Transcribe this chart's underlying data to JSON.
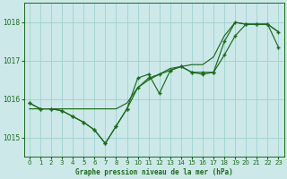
{
  "bg_color": "#cce8e8",
  "grid_color": "#99cccc",
  "line_color": "#1a6b1a",
  "xlim": [
    -0.5,
    23.5
  ],
  "ylim": [
    1014.5,
    1018.5
  ],
  "yticks": [
    1015,
    1016,
    1017,
    1018
  ],
  "xtick_labels": [
    "0",
    "1",
    "2",
    "3",
    "4",
    "5",
    "6",
    "7",
    "8",
    "9",
    "10",
    "11",
    "12",
    "13",
    "14",
    "15",
    "16",
    "17",
    "18",
    "19",
    "20",
    "21",
    "22",
    "23"
  ],
  "xticks": [
    0,
    1,
    2,
    3,
    4,
    5,
    6,
    7,
    8,
    9,
    10,
    11,
    12,
    13,
    14,
    15,
    16,
    17,
    18,
    19,
    20,
    21,
    22,
    23
  ],
  "xlabel": "Graphe pression niveau de la mer (hPa)",
  "hours": [
    0,
    1,
    2,
    3,
    4,
    5,
    6,
    7,
    8,
    9,
    10,
    11,
    12,
    13,
    14,
    15,
    16,
    17,
    18,
    19,
    20,
    21,
    22,
    23
  ],
  "curve_main": [
    1015.9,
    1015.75,
    1015.75,
    1015.7,
    1015.55,
    1015.4,
    1015.2,
    1014.85,
    1015.3,
    1015.75,
    1016.55,
    1016.65,
    1016.15,
    1016.75,
    1016.85,
    1016.7,
    1016.7,
    1016.7,
    1017.15,
    1017.65,
    1017.95,
    1017.95,
    1017.95,
    1017.75
  ],
  "curve_upper": [
    1015.75,
    1015.75,
    1015.75,
    1015.75,
    1015.75,
    1015.75,
    1015.75,
    1015.75,
    1015.75,
    1015.9,
    1016.3,
    1016.5,
    1016.65,
    1016.8,
    1016.85,
    1016.9,
    1016.9,
    1017.1,
    1017.65,
    1018.0,
    1017.95,
    1017.95,
    1017.95,
    1017.75
  ],
  "curve_lower": [
    1015.9,
    1015.75,
    1015.75,
    1015.7,
    1015.55,
    1015.4,
    1015.2,
    1014.85,
    1015.3,
    1015.75,
    1016.3,
    1016.55,
    1016.65,
    1016.75,
    1016.85,
    1016.7,
    1016.65,
    1016.7,
    1017.5,
    1018.0,
    1017.95,
    1017.95,
    1017.95,
    1017.35
  ]
}
